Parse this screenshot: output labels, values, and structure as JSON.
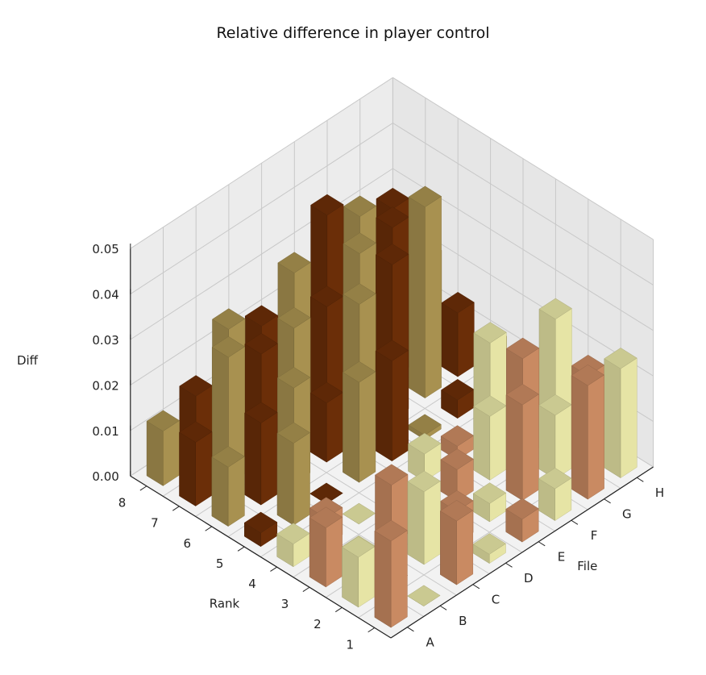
{
  "chart_data": {
    "type": "bar3d",
    "title": "Relative difference in player control",
    "xlabel": "File",
    "ylabel": "Rank",
    "zlabel": "Diff",
    "files": [
      "A",
      "B",
      "C",
      "D",
      "E",
      "F",
      "G",
      "H"
    ],
    "ranks": [
      "1",
      "2",
      "3",
      "4",
      "5",
      "6",
      "7",
      "8"
    ],
    "zticks": [
      "0.00",
      "0.01",
      "0.02",
      "0.03",
      "0.04",
      "0.05"
    ],
    "zlim": [
      0,
      0.05
    ],
    "grid": true,
    "colors": {
      "dark_brown": "#6b2e08",
      "olive_tan": "#a89150",
      "light_yellow": "#e6e4a5",
      "salmon": "#c98a62"
    },
    "values": [
      [
        0.019,
        0.0,
        0.014,
        0.002,
        0.005,
        0.007,
        0.025,
        0.024
      ],
      [
        0.011,
        0.0,
        0.016,
        0.007,
        0.004,
        0.021,
        0.014,
        0.018
      ],
      [
        0.013,
        0.002,
        0.013,
        0.0,
        0.007,
        0.014,
        0.022,
        0.026
      ],
      [
        0.005,
        0.006,
        0.0,
        0.002,
        0.006,
        0.003,
        0.021,
        0.01
      ],
      [
        0.003,
        0.018,
        0.0,
        0.022,
        0.022,
        0.001,
        0.004,
        0.011
      ],
      [
        0.013,
        0.018,
        0.021,
        0.013,
        0.03,
        0.034,
        0.042,
        0.014
      ],
      [
        0.014,
        0.028,
        0.024,
        0.025,
        0.025,
        0.032,
        0.033,
        0.021
      ],
      [
        0.012,
        0.015,
        0.025,
        0.021,
        0.028,
        0.036,
        0.031,
        0.028
      ]
    ],
    "color_codes": [
      [
        "salmon",
        "light_yellow",
        "salmon",
        "light_yellow",
        "salmon",
        "light_yellow",
        "salmon",
        "light_yellow"
      ],
      [
        "light_yellow",
        "salmon",
        "light_yellow",
        "salmon",
        "light_yellow",
        "salmon",
        "light_yellow",
        "salmon"
      ],
      [
        "salmon",
        "light_yellow",
        "salmon",
        "light_yellow",
        "salmon",
        "light_yellow",
        "salmon",
        "light_yellow"
      ],
      [
        "light_yellow",
        "salmon",
        "light_yellow",
        "salmon",
        "light_yellow",
        "salmon",
        "light_yellow",
        "salmon"
      ],
      [
        "dark_brown",
        "olive_tan",
        "dark_brown",
        "olive_tan",
        "dark_brown",
        "olive_tan",
        "dark_brown",
        "olive_tan"
      ],
      [
        "olive_tan",
        "dark_brown",
        "olive_tan",
        "dark_brown",
        "olive_tan",
        "dark_brown",
        "olive_tan",
        "dark_brown"
      ],
      [
        "dark_brown",
        "olive_tan",
        "dark_brown",
        "olive_tan",
        "dark_brown",
        "olive_tan",
        "dark_brown",
        "olive_tan"
      ],
      [
        "olive_tan",
        "dark_brown",
        "olive_tan",
        "dark_brown",
        "olive_tan",
        "dark_brown",
        "olive_tan",
        "dark_brown"
      ]
    ]
  }
}
